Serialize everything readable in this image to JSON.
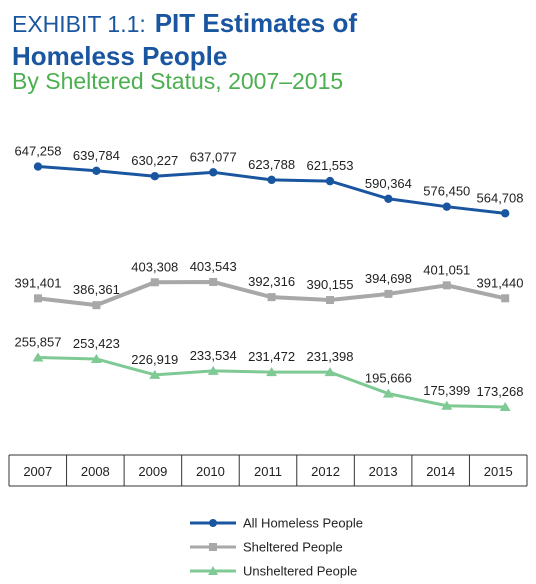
{
  "title_prefix": "EXHIBIT 1.1:",
  "title_main_line1": "PIT Estimates of",
  "title_main_line2": "Homeless People",
  "subtitle": "By Sheltered Status, 2007–2015",
  "chart_data": {
    "type": "line",
    "title": "EXHIBIT 1.1: PIT Estimates of Homeless People",
    "subtitle": "By Sheltered Status, 2007–2015",
    "x": [
      "2007",
      "2008",
      "2009",
      "2010",
      "2011",
      "2012",
      "2013",
      "2014",
      "2015"
    ],
    "legend_position": "bottom",
    "grid": false,
    "series": [
      {
        "name": "All Homeless People",
        "color": "#1a56a0",
        "marker": "circle",
        "values": [
          647258,
          639784,
          630227,
          637077,
          623788,
          621553,
          590364,
          576450,
          564708
        ],
        "labels": [
          "647,258",
          "639,784",
          "630,227",
          "637,077",
          "623,788",
          "621,553",
          "590,364",
          "576,450",
          "564,708"
        ]
      },
      {
        "name": "Sheltered People",
        "color": "#a8a8a8",
        "marker": "square",
        "values": [
          391401,
          386361,
          403308,
          403543,
          392316,
          390155,
          394698,
          401051,
          391440
        ],
        "labels": [
          "391,401",
          "386,361",
          "403,308",
          "403,543",
          "392,316",
          "390,155",
          "394,698",
          "401,051",
          "391,440"
        ]
      },
      {
        "name": "Unsheltered People",
        "color": "#7fca94",
        "marker": "triangle",
        "values": [
          255857,
          253423,
          226919,
          233534,
          231472,
          231398,
          195666,
          175399,
          173268
        ],
        "labels": [
          "255,857",
          "253,423",
          "226,919",
          "233,534",
          "231,472",
          "231,398",
          "195,666",
          "175,399",
          "173,268"
        ]
      }
    ]
  }
}
